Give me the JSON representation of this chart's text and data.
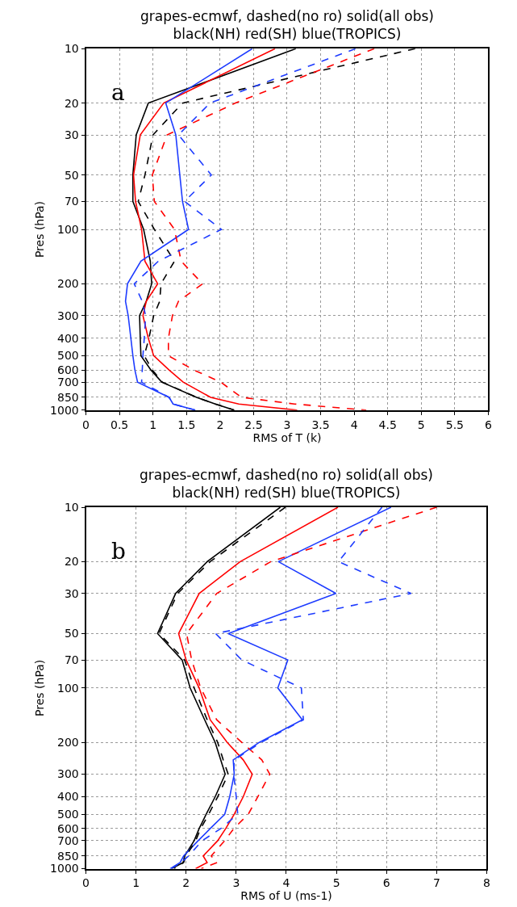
{
  "chart_data": [
    {
      "type": "line",
      "title": "grapes-ecmwf, dashed(no ro) solid(all obs)\nblack(NH) red(SH) blue(TROPICS)",
      "xlabel": "RMS of T (k)",
      "ylabel": "Pres (hPa)",
      "annotations": [
        "a"
      ],
      "log": "y",
      "grid": true,
      "xlim": [
        0,
        6
      ],
      "xticks": [
        0,
        0.5,
        1,
        1.5,
        2,
        2.5,
        3,
        3.5,
        4,
        4.5,
        5,
        5.5,
        6
      ],
      "ylim": [
        1000,
        10
      ],
      "yticks": [
        10,
        20,
        30,
        50,
        70,
        100,
        200,
        300,
        400,
        500,
        600,
        700,
        850,
        1000
      ],
      "series": [
        {
          "color": "#000000",
          "line_style": "solid",
          "x": [
            3.13,
            0.93,
            0.75,
            0.7,
            0.7,
            0.86,
            0.96,
            0.98,
            0.9,
            0.8,
            0.81,
            0.82,
            0.97,
            1.13,
            1.65,
            1.93,
            2.21
          ],
          "values": [
            10,
            20,
            30,
            50,
            70,
            100,
            150,
            200,
            250,
            300,
            400,
            500,
            600,
            700,
            850,
            925,
            1000
          ]
        },
        {
          "color": "#ff0000",
          "line_style": "solid",
          "x": [
            2.82,
            1.16,
            0.81,
            0.71,
            0.74,
            0.83,
            0.88,
            1.07,
            0.9,
            0.85,
            0.93,
            1.01,
            1.24,
            1.45,
            1.86,
            2.28,
            3.15
          ],
          "values": [
            10,
            20,
            30,
            50,
            70,
            100,
            150,
            200,
            250,
            300,
            400,
            500,
            600,
            700,
            850,
            925,
            1000
          ]
        },
        {
          "color": "#1e3cff",
          "line_style": "solid",
          "x": [
            2.48,
            1.19,
            1.34,
            1.4,
            1.44,
            1.53,
            0.82,
            0.62,
            0.59,
            0.63,
            0.67,
            0.7,
            0.73,
            0.77,
            1.24,
            1.3,
            1.63
          ],
          "values": [
            10,
            20,
            30,
            50,
            70,
            100,
            150,
            200,
            250,
            300,
            400,
            500,
            600,
            700,
            850,
            925,
            1000
          ]
        },
        {
          "color": "#000000",
          "line_style": "dashed",
          "x": [
            4.91,
            1.44,
            1.0,
            0.88,
            0.78,
            1.02,
            1.32,
            1.12,
            1.1,
            1.01,
            0.94,
            0.87,
            0.99,
            1.14,
            1.65,
            1.93,
            2.21
          ],
          "values": [
            10,
            20,
            30,
            50,
            70,
            100,
            150,
            200,
            250,
            300,
            400,
            500,
            600,
            700,
            850,
            925,
            1000
          ]
        },
        {
          "color": "#ff0000",
          "line_style": "dashed",
          "x": [
            4.3,
            2.23,
            1.21,
            0.99,
            1.02,
            1.32,
            1.42,
            1.74,
            1.38,
            1.29,
            1.23,
            1.23,
            1.61,
            2.01,
            2.32,
            3.11,
            4.18
          ],
          "values": [
            10,
            20,
            30,
            50,
            70,
            100,
            150,
            200,
            250,
            300,
            400,
            500,
            600,
            700,
            850,
            925,
            1000
          ]
        },
        {
          "color": "#1e3cff",
          "line_style": "dashed",
          "x": [
            4.02,
            1.85,
            1.38,
            1.87,
            1.47,
            2.02,
            1.08,
            0.72,
            0.84,
            0.89,
            0.87,
            0.85,
            0.84,
            0.83,
            1.24,
            1.3,
            1.63
          ],
          "values": [
            10,
            20,
            30,
            50,
            70,
            100,
            150,
            200,
            250,
            300,
            400,
            500,
            600,
            700,
            850,
            925,
            1000
          ]
        }
      ]
    },
    {
      "type": "line",
      "title": "grapes-ecmwf, dashed(no ro) solid(all obs)\nblack(NH) red(SH) blue(TROPICS)",
      "xlabel": "RMS of U (ms-1)",
      "ylabel": "Pres (hPa)",
      "annotations": [
        "b"
      ],
      "log": "y",
      "grid": true,
      "xlim": [
        0,
        8
      ],
      "xticks": [
        0,
        1,
        2,
        3,
        4,
        5,
        6,
        7,
        8
      ],
      "ylim": [
        1000,
        10
      ],
      "yticks": [
        10,
        20,
        30,
        50,
        70,
        100,
        200,
        300,
        400,
        500,
        600,
        700,
        850,
        1000
      ],
      "series": [
        {
          "color": "#000000",
          "line_style": "solid",
          "x": [
            3.88,
            2.42,
            1.79,
            1.43,
            1.92,
            2.08,
            2.37,
            2.58,
            2.69,
            2.78,
            2.58,
            2.4,
            2.26,
            2.16,
            1.97,
            1.94,
            1.71
          ],
          "values": [
            10,
            20,
            30,
            50,
            70,
            100,
            150,
            200,
            250,
            300,
            400,
            500,
            600,
            700,
            850,
            925,
            1000
          ]
        },
        {
          "color": "#ff0000",
          "line_style": "solid",
          "x": [
            5.03,
            3.08,
            2.26,
            1.85,
            2.0,
            2.26,
            2.48,
            2.82,
            3.14,
            3.32,
            3.14,
            2.96,
            2.79,
            2.63,
            2.34,
            2.42,
            2.19
          ],
          "values": [
            10,
            20,
            30,
            50,
            70,
            100,
            150,
            200,
            250,
            300,
            400,
            500,
            600,
            700,
            850,
            925,
            1000
          ]
        },
        {
          "color": "#1e3cff",
          "line_style": "solid",
          "x": [
            6.09,
            3.84,
            4.99,
            2.84,
            4.03,
            3.83,
            4.32,
            3.46,
            2.94,
            2.96,
            2.87,
            2.77,
            2.48,
            2.24,
            1.95,
            1.88,
            1.68
          ],
          "values": [
            10,
            20,
            30,
            50,
            70,
            100,
            150,
            200,
            250,
            300,
            400,
            500,
            600,
            700,
            850,
            925,
            1000
          ]
        },
        {
          "color": "#000000",
          "line_style": "dashed",
          "x": [
            3.98,
            2.48,
            1.83,
            1.46,
            1.97,
            2.16,
            2.42,
            2.63,
            2.74,
            2.84,
            2.63,
            2.45,
            2.29,
            2.19,
            2.0,
            1.95,
            1.76
          ],
          "values": [
            10,
            20,
            30,
            50,
            70,
            100,
            150,
            200,
            250,
            300,
            400,
            500,
            600,
            700,
            850,
            925,
            1000
          ]
        },
        {
          "color": "#ff0000",
          "line_style": "dashed",
          "x": [
            7.0,
            3.69,
            2.61,
            2.01,
            2.11,
            2.29,
            2.61,
            3.11,
            3.51,
            3.67,
            3.43,
            3.24,
            2.95,
            2.77,
            2.5,
            2.62,
            2.3
          ],
          "values": [
            10,
            20,
            30,
            50,
            70,
            100,
            150,
            200,
            250,
            300,
            400,
            500,
            600,
            700,
            850,
            925,
            1000
          ]
        },
        {
          "color": "#1e3cff",
          "line_style": "dashed",
          "x": [
            5.91,
            5.04,
            6.49,
            2.59,
            3.11,
            4.3,
            4.34,
            3.5,
            2.96,
            2.95,
            3.0,
            3.03,
            2.69,
            2.32,
            2.05,
            1.9,
            1.7
          ],
          "values": [
            10,
            20,
            30,
            50,
            70,
            100,
            150,
            200,
            250,
            300,
            400,
            500,
            600,
            700,
            850,
            925,
            1000
          ]
        }
      ]
    }
  ]
}
